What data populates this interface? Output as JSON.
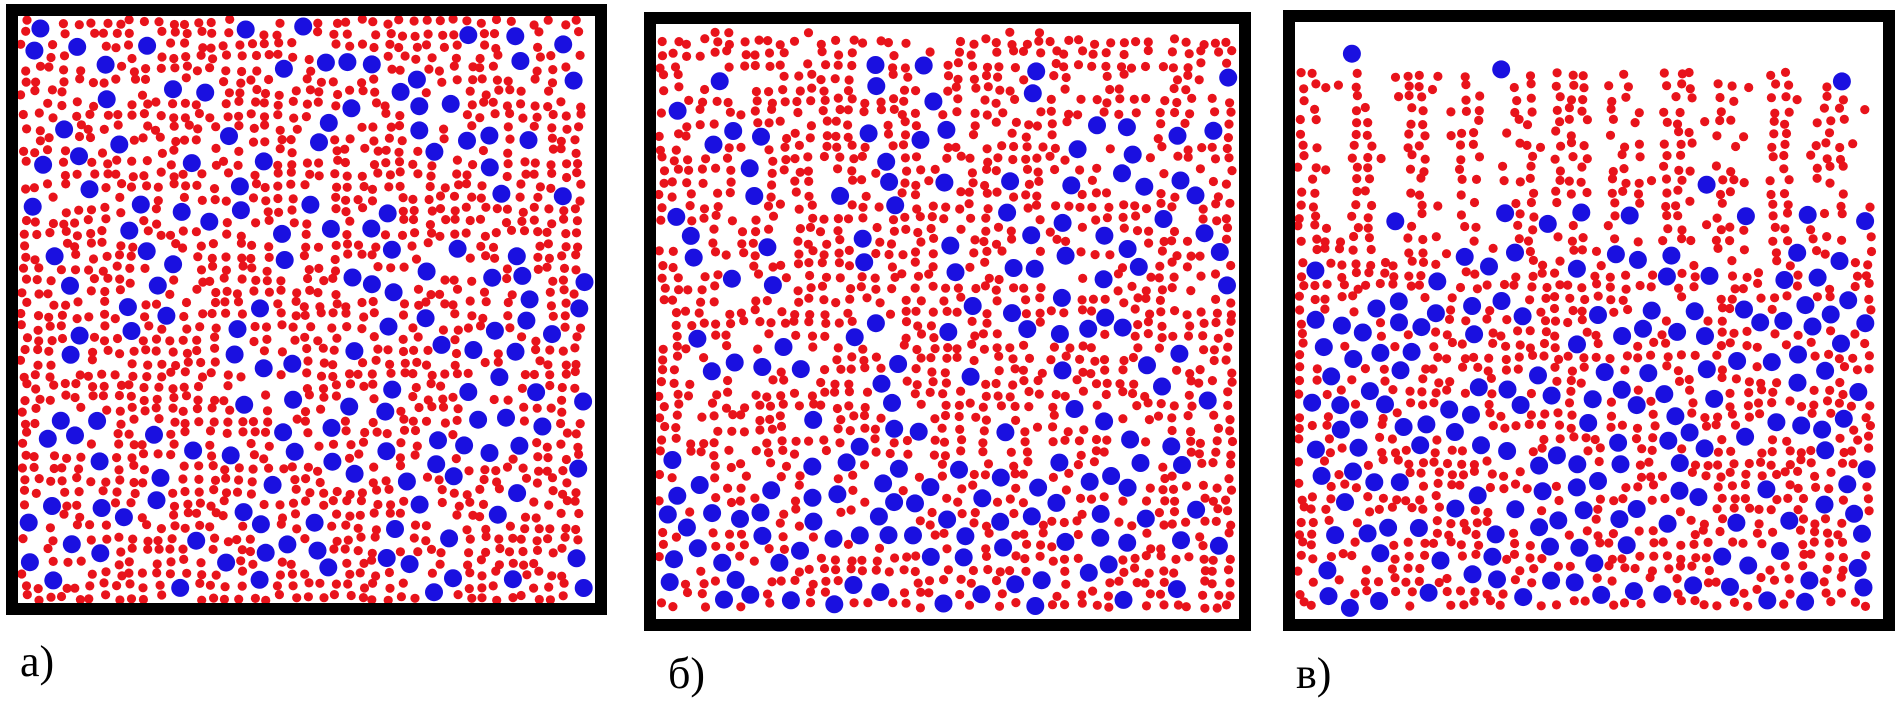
{
  "colors": {
    "small_particle": "#e8131b",
    "large_particle": "#1a10e0",
    "frame": "#000000",
    "background": "#ffffff"
  },
  "panels": [
    {
      "caption": "а)"
    },
    {
      "caption": "б)"
    },
    {
      "caption": "в)"
    }
  ]
}
